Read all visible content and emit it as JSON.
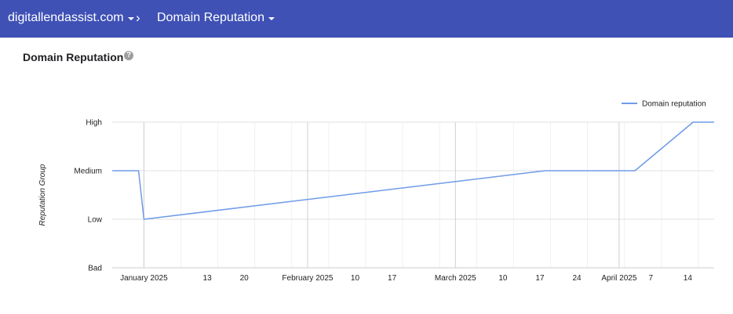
{
  "header": {
    "domain_label": "digitallendassist.com",
    "separator": "›",
    "report_label": "Domain Reputation",
    "background_color": "#3f51b5"
  },
  "page": {
    "title": "Domain Reputation",
    "help_icon": "help-circle-icon",
    "help_glyph": "?"
  },
  "chart_data": {
    "type": "line",
    "legend": {
      "label": "Domain reputation",
      "position": "top-right"
    },
    "ylabel": "Reputation Group",
    "y_categories": [
      "Bad",
      "Low",
      "Medium",
      "High"
    ],
    "x_ticks": [
      "January 2025",
      "13",
      "20",
      "February 2025",
      "10",
      "17",
      "March 2025",
      "10",
      "17",
      "24",
      "April 2025",
      "7",
      "14"
    ],
    "x_tick_dates": [
      "2025-01-01",
      "2025-01-13",
      "2025-01-20",
      "2025-02-01",
      "2025-02-10",
      "2025-02-17",
      "2025-03-01",
      "2025-03-10",
      "2025-03-17",
      "2025-03-24",
      "2025-04-01",
      "2025-04-07",
      "2025-04-14"
    ],
    "x_range": [
      "2024-12-26",
      "2025-04-19"
    ],
    "grid": true,
    "line_color": "#6f9be8",
    "series": [
      {
        "name": "Domain reputation",
        "points": [
          {
            "date": "2024-12-26",
            "value": "Medium"
          },
          {
            "date": "2024-12-31",
            "value": "Medium"
          },
          {
            "date": "2025-01-01",
            "value": "Low"
          },
          {
            "date": "2025-03-18",
            "value": "Medium"
          },
          {
            "date": "2025-04-04",
            "value": "Medium"
          },
          {
            "date": "2025-04-15",
            "value": "High"
          },
          {
            "date": "2025-04-19",
            "value": "High"
          }
        ]
      }
    ]
  }
}
